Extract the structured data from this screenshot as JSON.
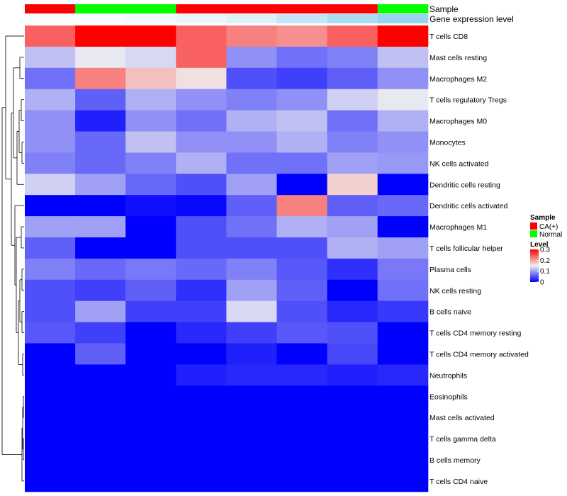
{
  "chart_data": {
    "type": "heatmap",
    "title": "",
    "annotation_tracks": {
      "sample": {
        "label": "Sample",
        "values": [
          "CA(+)",
          "Normal",
          "Normal",
          "CA(+)",
          "CA(+)",
          "CA(+)",
          "CA(+)",
          "Normal"
        ]
      },
      "gene_expression": {
        "label": "Gene expression level",
        "values": [
          0.04,
          0.06,
          0.1,
          0.18,
          0.28,
          0.5,
          0.7,
          0.85
        ]
      }
    },
    "rows": [
      "T cells CD8",
      "Mast cells resting",
      "Macrophages M2",
      "T cells regulatory  Tregs",
      "Macrophages M0",
      "Monocytes",
      "NK cells activated",
      "Dendritic cells resting",
      "Dendritic cells activated",
      "Macrophages M1",
      "T cells follicular helper",
      "Plasma cells",
      "NK cells resting",
      "B cells naive",
      "T cells CD4 memory resting",
      "T cells CD4 memory activated",
      "Neutrophils",
      "Eosinophils",
      "Mast cells activated",
      "T cells gamma delta",
      "B cells memory",
      "T cells CD4 naive"
    ],
    "values": [
      [
        0.24,
        0.3,
        0.3,
        0.24,
        0.22,
        0.21,
        0.24,
        0.3
      ],
      [
        0.12,
        0.145,
        0.135,
        0.24,
        0.09,
        0.07,
        0.08,
        0.12
      ],
      [
        0.07,
        0.22,
        0.18,
        0.16,
        0.05,
        0.04,
        0.06,
        0.09
      ],
      [
        0.11,
        0.06,
        0.11,
        0.09,
        0.08,
        0.09,
        0.13,
        0.145
      ],
      [
        0.09,
        0.02,
        0.09,
        0.07,
        0.11,
        0.12,
        0.07,
        0.11
      ],
      [
        0.09,
        0.065,
        0.12,
        0.09,
        0.09,
        0.11,
        0.08,
        0.09
      ],
      [
        0.08,
        0.065,
        0.08,
        0.11,
        0.07,
        0.07,
        0.1,
        0.095
      ],
      [
        0.13,
        0.1,
        0.065,
        0.05,
        0.1,
        0.0,
        0.17,
        0.0
      ],
      [
        0.0,
        0.0,
        0.01,
        0.005,
        0.06,
        0.22,
        0.06,
        0.065
      ],
      [
        0.1,
        0.1,
        0.0,
        0.05,
        0.07,
        0.11,
        0.1,
        0.0
      ],
      [
        0.06,
        0.0,
        0.0,
        0.05,
        0.05,
        0.05,
        0.11,
        0.1
      ],
      [
        0.08,
        0.065,
        0.075,
        0.065,
        0.08,
        0.055,
        0.03,
        0.075
      ],
      [
        0.05,
        0.04,
        0.06,
        0.03,
        0.1,
        0.06,
        0.0,
        0.07
      ],
      [
        0.05,
        0.1,
        0.04,
        0.04,
        0.135,
        0.05,
        0.025,
        0.035
      ],
      [
        0.055,
        0.04,
        0.0,
        0.025,
        0.04,
        0.055,
        0.05,
        0.0
      ],
      [
        0.0,
        0.06,
        0.0,
        0.0,
        0.02,
        0.0,
        0.045,
        0.0
      ],
      [
        0.0,
        0.0,
        0.0,
        0.02,
        0.025,
        0.025,
        0.02,
        0.025
      ],
      [
        0.0,
        0.0,
        0.0,
        0.0,
        0.0,
        0.0,
        0.0,
        0.0
      ],
      [
        0.0,
        0.0,
        0.0,
        0.0,
        0.0,
        0.0,
        0.0,
        0.0
      ],
      [
        0.0,
        0.0,
        0.0,
        0.0,
        0.0,
        0.0,
        0.0,
        0.0
      ],
      [
        0.0,
        0.0,
        0.0,
        0.0,
        0.0,
        0.0,
        0.0,
        0.0
      ],
      [
        0.0,
        0.0,
        0.0,
        0.0,
        0.0,
        0.0,
        0.0,
        0.0
      ]
    ],
    "color_scale": {
      "min": 0,
      "max": 0.3,
      "low_color": "#0000ff",
      "mid_color": "#f0f0f0",
      "high_color": "#ff0000",
      "mid_value": 0.15
    },
    "legend": {
      "position": "right",
      "sample_title": "Sample",
      "sample_entries": [
        {
          "label": "CA(+)",
          "color": "#ff0000"
        },
        {
          "label": "Normal",
          "color": "#00ff00"
        }
      ],
      "level_title": "Level",
      "level_ticks": [
        {
          "value": 0.3,
          "label": "0.3"
        },
        {
          "value": 0.2,
          "label": "0.2"
        },
        {
          "value": 0.1,
          "label": "0.1"
        },
        {
          "value": 0,
          "label": "0"
        }
      ]
    },
    "gene_expression_colors": {
      "low": "#ffffff",
      "high": "#87ceeb"
    },
    "dendrogram": {
      "side": "left",
      "merges": [
        [
          17,
          18,
          0.015
        ],
        [
          19,
          20,
          0.015
        ],
        [
          21,
          99,
          0.02
        ],
        [
          3,
          4,
          0.45
        ],
        [
          5,
          6,
          0.5
        ],
        [
          9,
          10,
          0.7
        ],
        [
          11,
          12,
          0.35
        ],
        [
          13,
          14,
          0.5
        ],
        [
          15,
          16,
          0.3
        ]
      ]
    }
  }
}
